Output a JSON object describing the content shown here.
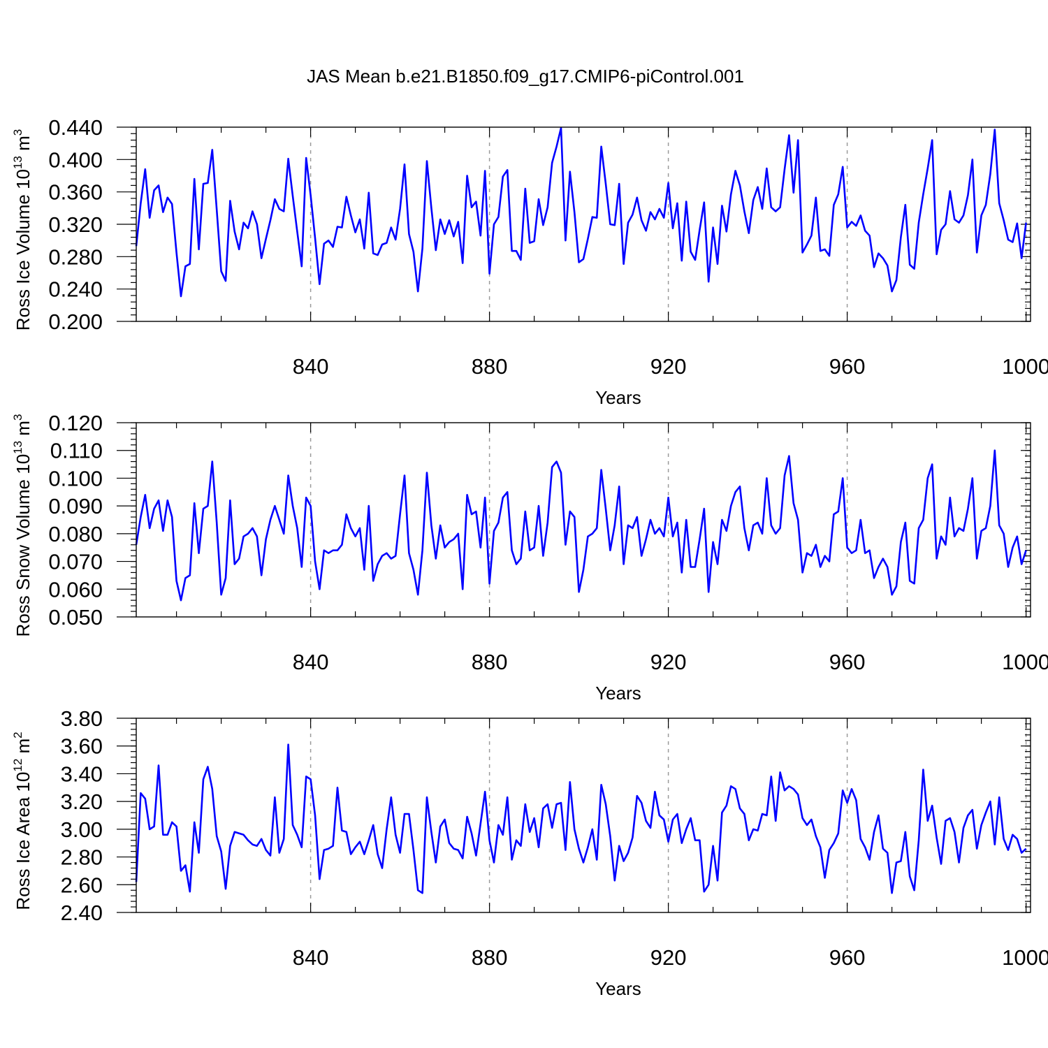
{
  "title": "JAS Mean b.e21.B1850.f09_g17.CMIP6-piControl.001",
  "chart_data": [
    {
      "type": "line",
      "name": "ross-ice-volume",
      "ylabel_main": "Ross Ice Volume 10",
      "ylabel_exp": "13",
      "ylabel_unit": " m",
      "ylabel_unit_exp": "3",
      "xlabel": "Years",
      "xlim": [
        801,
        1001
      ],
      "ylim": [
        0.2,
        0.44
      ],
      "xticks": [
        840,
        880,
        920,
        960,
        1000
      ],
      "xtick_labels": [
        "840",
        "880",
        "920",
        "960",
        "1000"
      ],
      "xminor_step": 10,
      "yticks": [
        0.2,
        0.24,
        0.28,
        0.32,
        0.36,
        0.4,
        0.44
      ],
      "ytick_labels": [
        "0.200",
        "0.240",
        "0.280",
        "0.320",
        "0.360",
        "0.400",
        "0.440"
      ],
      "yminor_step": 0.008,
      "grid": "dashed vertical at major x ticks",
      "color": "#0000ff",
      "x_start": 801,
      "values": [
        0.293,
        0.346,
        0.388,
        0.328,
        0.362,
        0.368,
        0.335,
        0.353,
        0.345,
        0.285,
        0.231,
        0.268,
        0.271,
        0.376,
        0.289,
        0.37,
        0.371,
        0.412,
        0.338,
        0.262,
        0.25,
        0.349,
        0.311,
        0.289,
        0.322,
        0.315,
        0.336,
        0.32,
        0.278,
        0.302,
        0.325,
        0.351,
        0.339,
        0.336,
        0.401,
        0.355,
        0.311,
        0.268,
        0.402,
        0.356,
        0.303,
        0.246,
        0.296,
        0.3,
        0.292,
        0.317,
        0.316,
        0.354,
        0.331,
        0.31,
        0.326,
        0.29,
        0.359,
        0.284,
        0.282,
        0.295,
        0.297,
        0.316,
        0.301,
        0.339,
        0.394,
        0.308,
        0.286,
        0.237,
        0.29,
        0.398,
        0.34,
        0.288,
        0.326,
        0.308,
        0.325,
        0.305,
        0.323,
        0.272,
        0.38,
        0.341,
        0.348,
        0.306,
        0.386,
        0.259,
        0.32,
        0.329,
        0.379,
        0.387,
        0.287,
        0.287,
        0.276,
        0.364,
        0.297,
        0.299,
        0.351,
        0.319,
        0.341,
        0.396,
        0.416,
        0.439,
        0.3,
        0.385,
        0.335,
        0.273,
        0.277,
        0.302,
        0.329,
        0.328,
        0.416,
        0.37,
        0.32,
        0.319,
        0.37,
        0.271,
        0.322,
        0.332,
        0.353,
        0.325,
        0.312,
        0.335,
        0.326,
        0.339,
        0.328,
        0.371,
        0.315,
        0.346,
        0.275,
        0.348,
        0.286,
        0.276,
        0.313,
        0.347,
        0.249,
        0.316,
        0.271,
        0.343,
        0.311,
        0.357,
        0.386,
        0.368,
        0.336,
        0.309,
        0.35,
        0.366,
        0.339,
        0.389,
        0.341,
        0.336,
        0.341,
        0.388,
        0.43,
        0.359,
        0.424,
        0.285,
        0.295,
        0.306,
        0.353,
        0.287,
        0.289,
        0.281,
        0.344,
        0.357,
        0.391,
        0.316,
        0.323,
        0.318,
        0.331,
        0.312,
        0.306,
        0.267,
        0.284,
        0.278,
        0.269,
        0.237,
        0.251,
        0.304,
        0.344,
        0.27,
        0.265,
        0.322,
        0.357,
        0.389,
        0.424,
        0.283,
        0.313,
        0.32,
        0.361,
        0.326,
        0.322,
        0.331,
        0.356,
        0.4,
        0.285,
        0.331,
        0.344,
        0.382,
        0.437,
        0.346,
        0.325,
        0.301,
        0.298,
        0.321,
        0.278,
        0.322
      ]
    },
    {
      "type": "line",
      "name": "ross-snow-volume",
      "ylabel_main": "Ross Snow Volume 10",
      "ylabel_exp": "13",
      "ylabel_unit": " m",
      "ylabel_unit_exp": "3",
      "xlabel": "Years",
      "xlim": [
        801,
        1001
      ],
      "ylim": [
        0.05,
        0.12
      ],
      "xticks": [
        840,
        880,
        920,
        960,
        1000
      ],
      "xtick_labels": [
        "840",
        "880",
        "920",
        "960",
        "1000"
      ],
      "xminor_step": 10,
      "yticks": [
        0.05,
        0.06,
        0.07,
        0.08,
        0.09,
        0.1,
        0.11,
        0.12
      ],
      "ytick_labels": [
        "0.050",
        "0.060",
        "0.070",
        "0.080",
        "0.090",
        "0.100",
        "0.110",
        "0.120"
      ],
      "yminor_step": 0.002,
      "grid": "dashed vertical at major x ticks",
      "color": "#0000ff",
      "x_start": 801,
      "values": [
        0.076,
        0.086,
        0.094,
        0.082,
        0.089,
        0.092,
        0.081,
        0.092,
        0.086,
        0.063,
        0.056,
        0.064,
        0.065,
        0.091,
        0.073,
        0.089,
        0.09,
        0.106,
        0.084,
        0.058,
        0.064,
        0.092,
        0.069,
        0.071,
        0.079,
        0.08,
        0.082,
        0.079,
        0.065,
        0.078,
        0.085,
        0.09,
        0.085,
        0.08,
        0.101,
        0.09,
        0.082,
        0.068,
        0.093,
        0.09,
        0.07,
        0.06,
        0.074,
        0.073,
        0.074,
        0.074,
        0.076,
        0.087,
        0.082,
        0.079,
        0.082,
        0.067,
        0.09,
        0.063,
        0.069,
        0.072,
        0.073,
        0.071,
        0.072,
        0.087,
        0.101,
        0.073,
        0.067,
        0.058,
        0.074,
        0.102,
        0.083,
        0.071,
        0.083,
        0.075,
        0.077,
        0.078,
        0.08,
        0.06,
        0.094,
        0.087,
        0.088,
        0.075,
        0.093,
        0.062,
        0.081,
        0.084,
        0.093,
        0.095,
        0.074,
        0.069,
        0.071,
        0.088,
        0.074,
        0.075,
        0.09,
        0.072,
        0.084,
        0.104,
        0.106,
        0.102,
        0.076,
        0.088,
        0.086,
        0.059,
        0.067,
        0.079,
        0.08,
        0.082,
        0.103,
        0.089,
        0.074,
        0.083,
        0.097,
        0.069,
        0.083,
        0.082,
        0.086,
        0.072,
        0.078,
        0.085,
        0.08,
        0.082,
        0.079,
        0.093,
        0.079,
        0.084,
        0.066,
        0.085,
        0.068,
        0.068,
        0.078,
        0.089,
        0.059,
        0.077,
        0.069,
        0.085,
        0.081,
        0.09,
        0.095,
        0.097,
        0.082,
        0.074,
        0.083,
        0.084,
        0.08,
        0.1,
        0.083,
        0.08,
        0.082,
        0.101,
        0.108,
        0.091,
        0.085,
        0.066,
        0.073,
        0.072,
        0.076,
        0.068,
        0.072,
        0.07,
        0.087,
        0.088,
        0.1,
        0.075,
        0.073,
        0.074,
        0.085,
        0.073,
        0.074,
        0.064,
        0.068,
        0.071,
        0.068,
        0.058,
        0.061,
        0.077,
        0.084,
        0.063,
        0.062,
        0.082,
        0.085,
        0.1,
        0.105,
        0.071,
        0.079,
        0.076,
        0.093,
        0.079,
        0.082,
        0.081,
        0.089,
        0.1,
        0.071,
        0.081,
        0.082,
        0.09,
        0.11,
        0.083,
        0.08,
        0.068,
        0.075,
        0.079,
        0.069,
        0.074
      ]
    },
    {
      "type": "line",
      "name": "ross-ice-area",
      "ylabel_main": "Ross Ice Area 10",
      "ylabel_exp": "12",
      "ylabel_unit": " m",
      "ylabel_unit_exp": "2",
      "xlabel": "Years",
      "xlim": [
        801,
        1001
      ],
      "ylim": [
        2.4,
        3.8
      ],
      "xticks": [
        840,
        880,
        920,
        960,
        1000
      ],
      "xtick_labels": [
        "840",
        "880",
        "920",
        "960",
        "1000"
      ],
      "xminor_step": 10,
      "yticks": [
        2.4,
        2.6,
        2.8,
        3.0,
        3.2,
        3.4,
        3.6,
        3.8
      ],
      "ytick_labels": [
        "2.40",
        "2.60",
        "2.80",
        "3.00",
        "3.20",
        "3.40",
        "3.60",
        "3.80"
      ],
      "yminor_step": 0.04,
      "grid": "dashed vertical at major x ticks",
      "color": "#0000ff",
      "x_start": 801,
      "values": [
        2.62,
        3.26,
        3.22,
        3.0,
        3.02,
        3.46,
        2.96,
        2.96,
        3.05,
        3.02,
        2.7,
        2.74,
        2.55,
        3.05,
        2.83,
        3.36,
        3.45,
        3.29,
        2.95,
        2.84,
        2.57,
        2.88,
        2.98,
        2.97,
        2.96,
        2.92,
        2.89,
        2.88,
        2.93,
        2.85,
        2.81,
        3.23,
        2.83,
        2.93,
        3.61,
        3.03,
        2.96,
        2.87,
        3.38,
        3.36,
        3.1,
        2.64,
        2.85,
        2.86,
        2.88,
        3.3,
        2.99,
        2.98,
        2.82,
        2.87,
        2.91,
        2.82,
        2.92,
        3.03,
        2.82,
        2.72,
        3.0,
        3.23,
        2.96,
        2.83,
        3.11,
        3.11,
        2.85,
        2.56,
        2.54,
        3.23,
        2.98,
        2.76,
        3.02,
        3.07,
        2.9,
        2.86,
        2.85,
        2.79,
        3.09,
        2.97,
        2.81,
        3.04,
        3.27,
        2.92,
        2.76,
        3.03,
        2.96,
        3.23,
        2.78,
        2.92,
        2.88,
        3.18,
        2.98,
        3.08,
        2.87,
        3.15,
        3.18,
        3.01,
        3.18,
        3.19,
        2.85,
        3.34,
        3.0,
        2.86,
        2.76,
        2.87,
        3.0,
        2.78,
        3.32,
        3.18,
        2.95,
        2.63,
        2.88,
        2.77,
        2.83,
        2.94,
        3.24,
        3.19,
        3.06,
        3.01,
        3.27,
        3.1,
        3.07,
        2.91,
        3.07,
        3.11,
        2.9,
        3.0,
        3.08,
        2.92,
        2.92,
        2.55,
        2.6,
        2.88,
        2.63,
        3.12,
        3.17,
        3.31,
        3.29,
        3.15,
        3.11,
        2.92,
        3.0,
        2.99,
        3.11,
        3.1,
        3.38,
        3.06,
        3.41,
        3.28,
        3.31,
        3.29,
        3.25,
        3.08,
        3.03,
        3.07,
        2.95,
        2.87,
        2.65,
        2.85,
        2.9,
        2.97,
        3.28,
        3.19,
        3.29,
        3.21,
        2.93,
        2.87,
        2.78,
        2.98,
        3.1,
        2.86,
        2.83,
        2.54,
        2.76,
        2.77,
        2.98,
        2.66,
        2.56,
        2.92,
        3.43,
        3.06,
        3.17,
        2.94,
        2.75,
        3.06,
        3.08,
        2.98,
        2.76,
        3.01,
        3.1,
        3.14,
        2.86,
        3.03,
        3.12,
        3.2,
        2.89,
        3.23,
        2.93,
        2.85,
        2.96,
        2.93,
        2.83,
        2.86
      ]
    }
  ]
}
